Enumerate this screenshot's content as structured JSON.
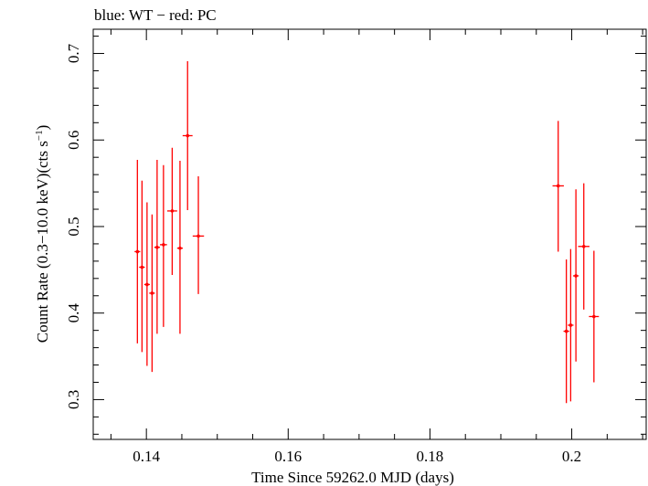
{
  "chart_data": {
    "type": "scatter",
    "title": "blue: WT − red: PC",
    "xlabel": "Time Since 59262.0 MJD (days)",
    "ylabel": "Count Rate (0.3−10.0 keV)(cts s",
    "ylabel_sup": "−1",
    "ylabel_close": ")",
    "xlim": [
      0.1325,
      0.2105
    ],
    "ylim": [
      0.254,
      0.728
    ],
    "x_ticks": [
      0.14,
      0.16,
      0.18,
      0.2
    ],
    "x_tick_labels": [
      "0.14",
      "0.16",
      "0.18",
      "0.2"
    ],
    "y_ticks": [
      0.3,
      0.4,
      0.5,
      0.6,
      0.7
    ],
    "y_tick_labels": [
      "0.3",
      "0.4",
      "0.5",
      "0.6",
      "0.7"
    ],
    "grid": false,
    "series": [
      {
        "name": "PC",
        "color": "#ff0000",
        "points": [
          {
            "x": 0.13873,
            "y": 0.471,
            "xerr": 0.0004,
            "ylo": 0.365,
            "yhi": 0.577
          },
          {
            "x": 0.13938,
            "y": 0.453,
            "xerr": 0.0004,
            "ylo": 0.355,
            "yhi": 0.553
          },
          {
            "x": 0.14009,
            "y": 0.433,
            "xerr": 0.0004,
            "ylo": 0.339,
            "yhi": 0.528
          },
          {
            "x": 0.1408,
            "y": 0.423,
            "xerr": 0.0004,
            "ylo": 0.332,
            "yhi": 0.514
          },
          {
            "x": 0.14151,
            "y": 0.476,
            "xerr": 0.0004,
            "ylo": 0.376,
            "yhi": 0.577
          },
          {
            "x": 0.14241,
            "y": 0.479,
            "xerr": 0.0005,
            "ylo": 0.384,
            "yhi": 0.571
          },
          {
            "x": 0.14364,
            "y": 0.518,
            "xerr": 0.0007,
            "ylo": 0.444,
            "yhi": 0.591
          },
          {
            "x": 0.14474,
            "y": 0.475,
            "xerr": 0.0004,
            "ylo": 0.376,
            "yhi": 0.576
          },
          {
            "x": 0.14581,
            "y": 0.605,
            "xerr": 0.0007,
            "ylo": 0.519,
            "yhi": 0.691
          },
          {
            "x": 0.14733,
            "y": 0.489,
            "xerr": 0.0008,
            "ylo": 0.422,
            "yhi": 0.558
          },
          {
            "x": 0.19809,
            "y": 0.547,
            "xerr": 0.0008,
            "ylo": 0.471,
            "yhi": 0.622
          },
          {
            "x": 0.19924,
            "y": 0.379,
            "xerr": 0.0004,
            "ylo": 0.296,
            "yhi": 0.462
          },
          {
            "x": 0.19985,
            "y": 0.386,
            "xerr": 0.0004,
            "ylo": 0.298,
            "yhi": 0.474
          },
          {
            "x": 0.20059,
            "y": 0.443,
            "xerr": 0.0004,
            "ylo": 0.344,
            "yhi": 0.543
          },
          {
            "x": 0.2017,
            "y": 0.477,
            "xerr": 0.0008,
            "ylo": 0.404,
            "yhi": 0.55
          },
          {
            "x": 0.20313,
            "y": 0.396,
            "xerr": 0.0007,
            "ylo": 0.32,
            "yhi": 0.472
          }
        ]
      }
    ]
  }
}
